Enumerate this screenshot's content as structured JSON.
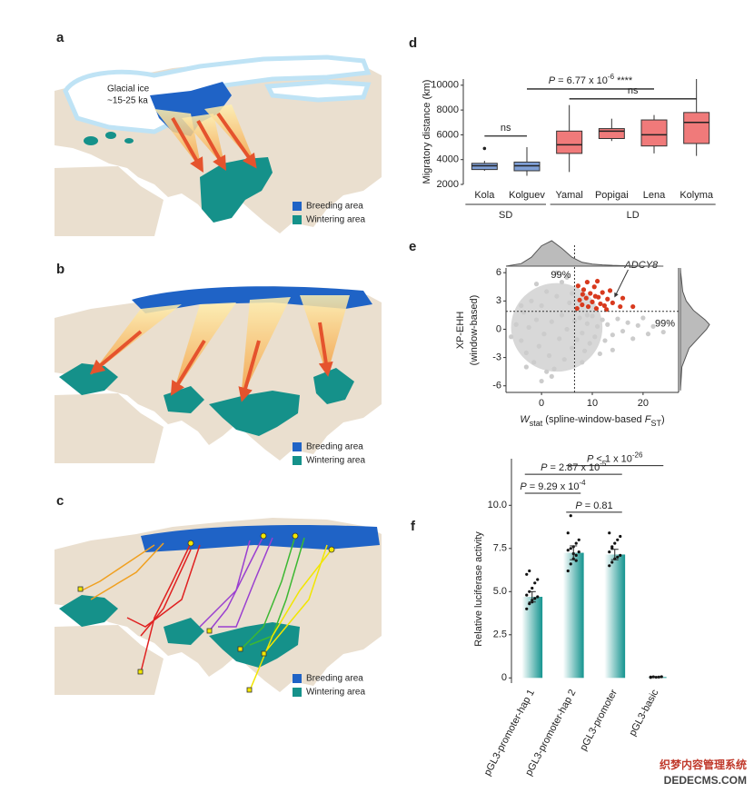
{
  "panel_labels": [
    "a",
    "b",
    "c",
    "d",
    "e",
    "f"
  ],
  "maps": {
    "glacial_ice": "Glacial ice",
    "glacial_age": "~15-25 ka",
    "legend": [
      "Breeding area",
      "Wintering area"
    ]
  },
  "chart_data": [
    {
      "type": "box",
      "ylabel": "Migratory distance (km)",
      "categories": [
        "Kola",
        "Kolguev",
        "Yamal",
        "Popigai",
        "Lena",
        "Kolyma"
      ],
      "groups": [
        "SD",
        "SD",
        "LD",
        "LD",
        "LD",
        "LD"
      ],
      "colors": [
        "#7f9fd6",
        "#7f9fd6",
        "#f07a7a",
        "#f07a7a",
        "#f07a7a",
        "#f07a7a"
      ],
      "whisker_low": [
        3100,
        2700,
        3000,
        5500,
        4500,
        4300
      ],
      "q1": [
        3200,
        3100,
        4500,
        5700,
        5100,
        5300
      ],
      "median": [
        3500,
        3500,
        5200,
        6300,
        6000,
        7000
      ],
      "q3": [
        3700,
        3800,
        6300,
        6500,
        7200,
        7800
      ],
      "whisker_high": [
        3900,
        5000,
        8400,
        7300,
        7600,
        10500
      ],
      "outliers": [
        [
          4900
        ],
        [],
        [],
        [],
        [],
        []
      ],
      "ylim": [
        2000,
        10500
      ],
      "yticks": [
        2000,
        4000,
        6000,
        8000,
        10000
      ],
      "annotations": [
        {
          "text": "ns",
          "between": [
            "Kola",
            "Kolguev"
          ],
          "y": 5900
        },
        {
          "italic": "P",
          "text": " = 6.77 x 10",
          "exponent": "-6",
          "suffix": " ****",
          "between": [
            "Kolguev",
            "Lena"
          ],
          "y": 9700
        },
        {
          "text": "ns",
          "between": [
            "Yamal",
            "Kolyma"
          ],
          "y": 8900
        }
      ]
    },
    {
      "type": "scatter",
      "ylabel": [
        "XP-EHH",
        "(window-based)"
      ],
      "xlabel": [
        {
          "text": "W",
          "style": "italic"
        },
        {
          "text": "stat",
          "style": "sub"
        },
        {
          "text": " (spline-window-based ",
          "style": "normal"
        },
        {
          "text": "F",
          "style": "italic"
        },
        {
          "text": "ST",
          "style": "sub"
        },
        {
          "text": ")",
          "style": "normal"
        }
      ],
      "xlim": [
        -7,
        27
      ],
      "ylim": [
        -6.7,
        6.5
      ],
      "xticks": [
        0,
        10,
        20
      ],
      "yticks": [
        -6,
        -3,
        0,
        3,
        6
      ],
      "thresholds": {
        "x": 6.5,
        "y": 1.9
      },
      "threshold_labels": [
        "99%",
        "99%"
      ],
      "highlight": "ADCY8",
      "highlight_point": [
        14.2,
        3.3
      ],
      "series": [
        {
          "color": "#cccccc",
          "x": [
            -5,
            -4,
            -3.5,
            -3,
            -2.5,
            -2,
            -1.5,
            -1,
            -0.5,
            0,
            0.5,
            1,
            1.5,
            2,
            2.5,
            3,
            3.5,
            4,
            4.5,
            5,
            5.5,
            6,
            6.5,
            7,
            7.5,
            8,
            8.5,
            9,
            9.5,
            10,
            10.5,
            11,
            11.5,
            12,
            12.5,
            13,
            14,
            15,
            16,
            17,
            18,
            19,
            21,
            22,
            24,
            -6,
            0,
            2,
            4,
            -1,
            3,
            5,
            1,
            6,
            -4,
            -3,
            9,
            8,
            14,
            20
          ],
          "y": [
            0.5,
            -1.2,
            1.8,
            -2.5,
            0.2,
            3,
            -3.5,
            1,
            -1.8,
            2.5,
            -0.5,
            4,
            -2.8,
            0.8,
            -4.2,
            3.5,
            -1,
            1.5,
            -3.2,
            0,
            2.8,
            -2,
            0.9,
            -1.1,
            1.2,
            -0.4,
            -2.3,
            0.6,
            -1.5,
            1.4,
            -0.8,
            0.3,
            -2.6,
            1,
            -1.2,
            0.5,
            -0.6,
            1.1,
            -0.2,
            0.7,
            -1,
            0.4,
            -0.5,
            0.3,
            -0.3,
            -0.8,
            -5.5,
            -5,
            5,
            4.8,
            6,
            5.5,
            -4.5,
            3.8,
            2.5,
            -4,
            1.5,
            -3.5,
            -2.2,
            1.2
          ]
        },
        {
          "color": "#d83a1e",
          "x": [
            7,
            7.5,
            8,
            8.3,
            8.8,
            9.2,
            9.6,
            10,
            10.4,
            10.8,
            11.2,
            11.6,
            12,
            12.4,
            13,
            13.5,
            14,
            7.2,
            9,
            11,
            15.5,
            16,
            18,
            12.8,
            8.1,
            10.6
          ],
          "y": [
            2.2,
            3.1,
            2.6,
            4.2,
            3.3,
            2.4,
            3.8,
            2.9,
            4.5,
            2.2,
            3.4,
            2.7,
            3.9,
            2.5,
            3.2,
            4.1,
            2.8,
            4.6,
            5,
            5.1,
            2.4,
            3.3,
            2.4,
            2.1,
            3.7,
            3.5
          ]
        }
      ],
      "x_density": {
        "x": [
          -7,
          -4,
          -2,
          0,
          2,
          4,
          6,
          8,
          10,
          12,
          14,
          16,
          18,
          20,
          24
        ],
        "values": [
          0,
          0.1,
          0.35,
          0.8,
          1,
          0.7,
          0.35,
          0.15,
          0.08,
          0.05,
          0.03,
          0.02,
          0.01,
          0.005,
          0
        ]
      },
      "y_density": {
        "y": [
          -6.5,
          -4,
          -2,
          -1,
          0,
          0.5,
          1,
          2,
          3,
          4,
          6,
          6.5
        ],
        "values": [
          0,
          0.05,
          0.3,
          0.6,
          0.9,
          1,
          0.85,
          0.45,
          0.2,
          0.08,
          0.01,
          0
        ]
      }
    },
    {
      "type": "bar",
      "ylabel": "Relative luciferase activity",
      "categories": [
        "pGL3-promoter-hap 1",
        "pGL3-promoter-hap 2",
        "pGL3-promoter",
        "pGL3-basic"
      ],
      "values": [
        4.7,
        7.25,
        7.15,
        0.05
      ],
      "errors": [
        0.3,
        0.4,
        0.3,
        0.02
      ],
      "color": "#14948f",
      "points": [
        [
          4,
          4.3,
          4.4,
          4.6,
          4.7,
          4.8,
          5,
          5.2,
          5.5,
          5.7,
          6,
          6.2,
          4.5
        ],
        [
          6.2,
          6.6,
          6.9,
          7.1,
          7.3,
          7.4,
          7.5,
          7.6,
          7.8,
          8,
          8.4,
          9.4,
          7.2,
          6.8
        ],
        [
          6.5,
          6.7,
          6.9,
          7,
          7.1,
          7.3,
          7.5,
          7.8,
          8,
          8.2,
          8.4,
          7.6
        ],
        [
          0.05,
          0.06,
          0.04,
          0.05,
          0.07,
          0.03
        ]
      ],
      "ylim": [
        -0.3,
        12.7
      ],
      "yticks": [
        0,
        2.5,
        {
          "value": 5,
          "label": "5.0"
        },
        {
          "value": 7.5,
          "label": "7.5"
        },
        {
          "value": 10,
          "label": "10.0"
        }
      ],
      "annotations": [
        {
          "italic": "P",
          "text": " < 1 x 10",
          "exponent": "-26",
          "between": [
            "pGL3-promoter-hap 2",
            "pGL3-basic"
          ],
          "y": 12.3
        },
        {
          "italic": "P",
          "text": " = 2.87 x 10",
          "exponent": "-5",
          "between": [
            "pGL3-promoter-hap 1",
            "pGL3-promoter"
          ],
          "y": 11.8
        },
        {
          "italic": "P",
          "text": " = 9.29 x 10",
          "exponent": "-4",
          "between": [
            "pGL3-promoter-hap 1",
            "pGL3-promoter-hap 2"
          ],
          "y": 10.7
        },
        {
          "italic": "P",
          "text": " = 0.81",
          "between": [
            "pGL3-promoter-hap 2",
            "pGL3-promoter"
          ],
          "y": 9.6
        }
      ]
    }
  ],
  "watermark": [
    "织梦内容管理系统",
    "DEDECMS.COM"
  ]
}
